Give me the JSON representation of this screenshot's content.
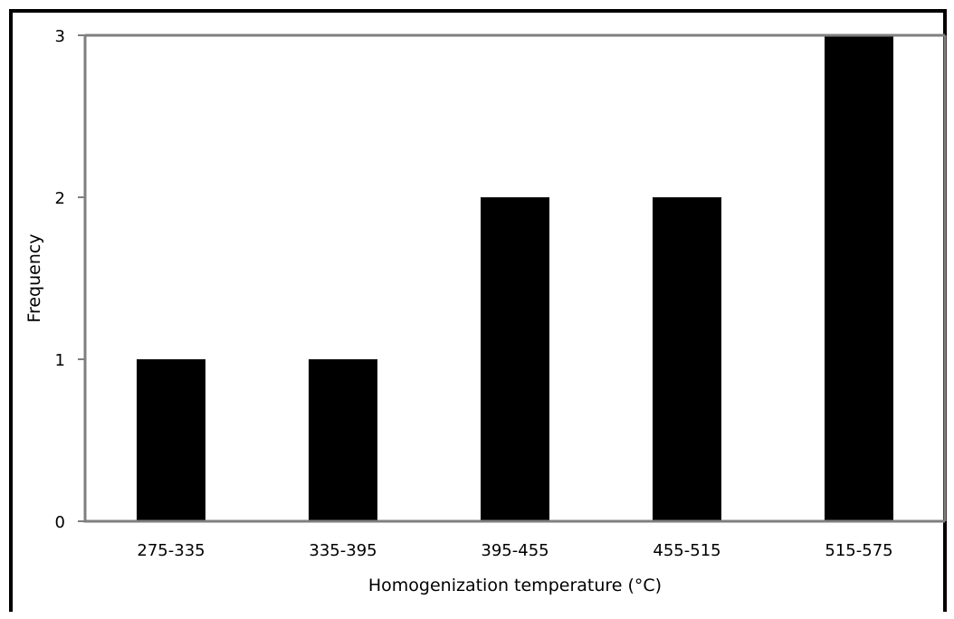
{
  "chart_data": {
    "type": "bar",
    "categories": [
      "275-335",
      "335-395",
      "395-455",
      "455-515",
      "515-575"
    ],
    "values": [
      1,
      1,
      2,
      2,
      3
    ],
    "title": "",
    "xlabel": "Homogenization temperature (°C)",
    "ylabel": "Frequency",
    "ylim": [
      0,
      3
    ],
    "yticks": [
      0,
      1,
      2,
      3
    ],
    "grid": false,
    "colors": {
      "bar": "#000000",
      "axis": "#7f7f7f"
    }
  }
}
